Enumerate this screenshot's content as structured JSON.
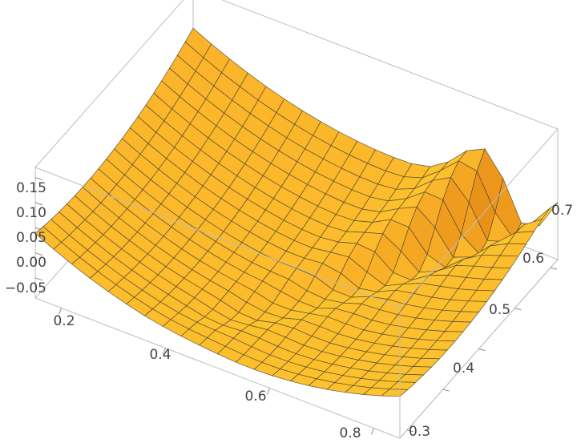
{
  "chart_data": {
    "type": "surface3d",
    "title": "",
    "xlabel": "",
    "ylabel": "",
    "zlabel": "",
    "grid": false,
    "legend": "none",
    "x_range": [
      0.15,
      0.85
    ],
    "y_range": [
      0.28,
      0.72
    ],
    "z_range": [
      -0.09,
      0.17
    ],
    "x_ticks": [
      "0.2",
      "0.4",
      "0.6",
      "0.8"
    ],
    "y_ticks": [
      "0.3",
      "0.4",
      "0.5",
      "0.6",
      "0.7"
    ],
    "z_ticks": [
      "−0.05",
      "0.00",
      "0.05",
      "0.10",
      "0.15"
    ],
    "x_tick_values": [
      0.2,
      0.4,
      0.6,
      0.8
    ],
    "y_tick_values": [
      0.3,
      0.4,
      0.5,
      0.6,
      0.7
    ],
    "z_tick_values": [
      -0.05,
      0.0,
      0.05,
      0.1,
      0.15
    ],
    "surface": {
      "description_of_shape": "",
      "mesh_divisions": 20,
      "colors": {
        "light": "#ffe835",
        "mid": "#fbb52a",
        "dark": "#e07f10",
        "mesh": "#4a4030"
      }
    }
  }
}
